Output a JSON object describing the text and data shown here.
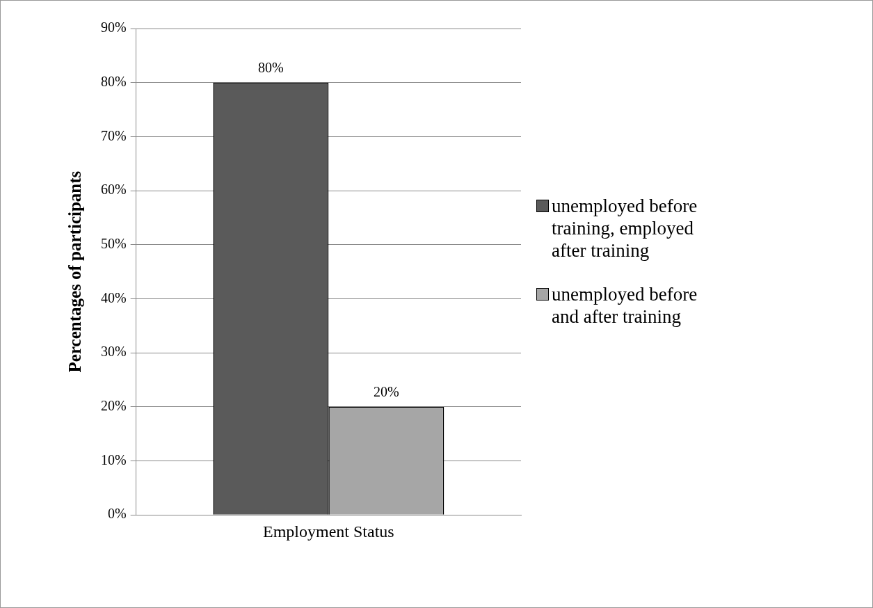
{
  "chart_data": {
    "type": "bar",
    "ylabel": "Percentages of participants",
    "categories": [
      "Employment Status"
    ],
    "series": [
      {
        "name": "unemployed before training, employed after training",
        "color": "#5a5a5a",
        "values": [
          80
        ],
        "value_labels": [
          "80%"
        ]
      },
      {
        "name": "unemployed before and after training",
        "color": "#a6a6a6",
        "values": [
          20
        ],
        "value_labels": [
          "20%"
        ]
      }
    ],
    "ylim": [
      0,
      90
    ],
    "yticks": [
      {
        "value": 0,
        "label": "0%"
      },
      {
        "value": 10,
        "label": "10%"
      },
      {
        "value": 20,
        "label": "20%"
      },
      {
        "value": 30,
        "label": "30%"
      },
      {
        "value": 40,
        "label": "40%"
      },
      {
        "value": 50,
        "label": "50%"
      },
      {
        "value": 60,
        "label": "60%"
      },
      {
        "value": 70,
        "label": "70%"
      },
      {
        "value": 80,
        "label": "80%"
      },
      {
        "value": 90,
        "label": "90%"
      }
    ],
    "grid": "y",
    "legend": "right"
  }
}
